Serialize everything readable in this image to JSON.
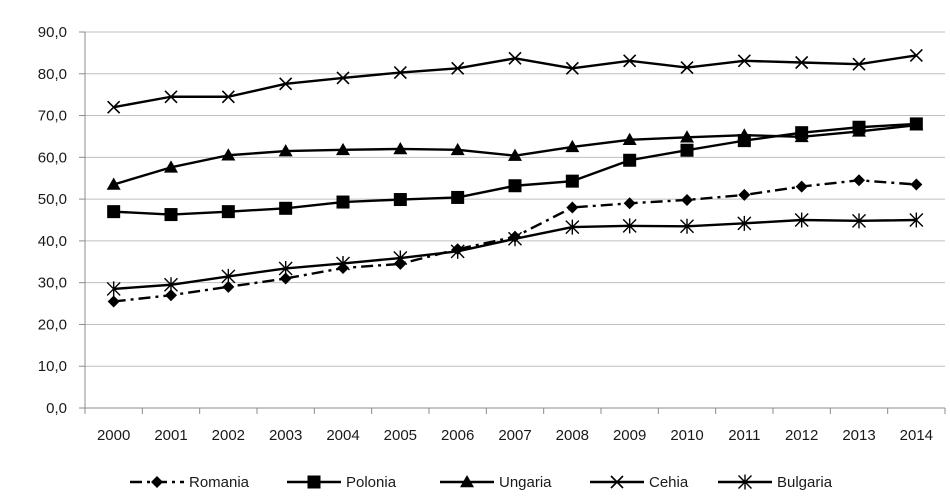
{
  "chart_data": {
    "type": "line",
    "title": "",
    "xlabel": "",
    "ylabel": "",
    "x": [
      "2000",
      "2001",
      "2002",
      "2003",
      "2004",
      "2005",
      "2006",
      "2007",
      "2008",
      "2009",
      "2010",
      "2011",
      "2012",
      "2013",
      "2014"
    ],
    "ylim": [
      0,
      90
    ],
    "y_ticks": [
      "0,0",
      "10,0",
      "20,0",
      "30,0",
      "40,0",
      "50,0",
      "60,0",
      "70,0",
      "80,0",
      "90,0"
    ],
    "grid": "horizontal",
    "legend_position": "bottom",
    "series": [
      {
        "name": "Romania",
        "marker": "diamond",
        "line": "dash-dot",
        "values": [
          25.5,
          27.0,
          29.0,
          31.0,
          33.5,
          34.5,
          38.0,
          41.0,
          48.0,
          49.0,
          49.8,
          51.0,
          53.0,
          54.5,
          53.5
        ]
      },
      {
        "name": "Polonia",
        "marker": "square",
        "line": "solid",
        "values": [
          47.0,
          46.3,
          47.0,
          47.8,
          49.3,
          49.9,
          50.4,
          53.2,
          54.3,
          59.3,
          61.7,
          64.0,
          65.9,
          67.2,
          68.0
        ]
      },
      {
        "name": "Ungaria",
        "marker": "triangle",
        "line": "solid",
        "values": [
          53.5,
          57.6,
          60.5,
          61.5,
          61.8,
          62.0,
          61.8,
          60.4,
          62.5,
          64.2,
          64.8,
          65.3,
          64.9,
          66.2,
          67.7
        ]
      },
      {
        "name": "Cehia",
        "marker": "x",
        "line": "solid",
        "values": [
          72.0,
          74.5,
          74.5,
          77.6,
          79.0,
          80.3,
          81.3,
          83.7,
          81.3,
          83.1,
          81.5,
          83.1,
          82.7,
          82.3,
          84.4
        ]
      },
      {
        "name": "Bulgaria",
        "marker": "star",
        "line": "solid",
        "values": [
          28.5,
          29.5,
          31.5,
          33.4,
          34.6,
          35.9,
          37.5,
          40.5,
          43.3,
          43.6,
          43.5,
          44.2,
          45.0,
          44.8,
          45.0
        ]
      }
    ],
    "colors": {
      "line": "#000000",
      "grid": "#bfbfbf",
      "axis": "#8c8c8c"
    }
  }
}
